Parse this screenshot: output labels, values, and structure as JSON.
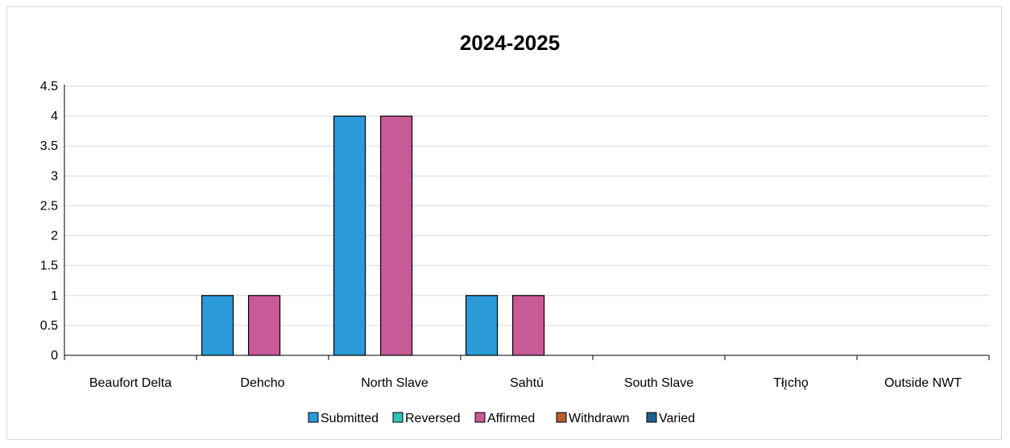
{
  "chart_data": {
    "type": "bar",
    "title": "2024-2025",
    "xlabel": "",
    "ylabel": "",
    "categories": [
      "Beaufort Delta",
      "Dehcho",
      "North Slave",
      "Sahtú",
      "South Slave",
      "Tłı̨chǫ",
      "Outside NWT"
    ],
    "series": [
      {
        "name": "Submitted",
        "color": "#2b9ad8",
        "values": [
          0,
          1,
          4,
          1,
          0,
          0,
          0
        ]
      },
      {
        "name": "Reversed",
        "color": "#2ec4b6",
        "values": [
          0,
          0,
          0,
          0,
          0,
          0,
          0
        ]
      },
      {
        "name": "Affirmed",
        "color": "#c85a98",
        "values": [
          0,
          1,
          4,
          1,
          0,
          0,
          0
        ]
      },
      {
        "name": "Withdrawn",
        "color": "#b5602a",
        "values": [
          0,
          0,
          0,
          0,
          0,
          0,
          0
        ]
      },
      {
        "name": "Varied",
        "color": "#1f5f8b",
        "values": [
          0,
          0,
          0,
          0,
          0,
          0,
          0
        ]
      }
    ],
    "ylim": [
      0,
      4.5
    ],
    "yticks": [
      "0",
      "0.5",
      "1",
      "1.5",
      "2",
      "2.5",
      "3",
      "3.5",
      "4",
      "4.5"
    ],
    "grid": true,
    "legend_position": "bottom"
  }
}
